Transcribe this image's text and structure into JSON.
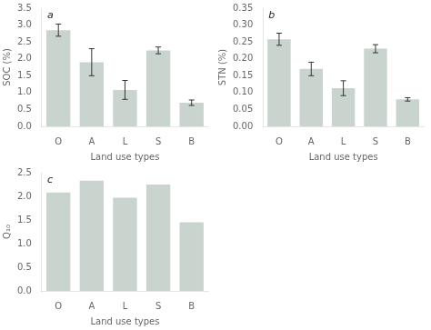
{
  "chart_data": [
    {
      "type": "bar",
      "annotation": "a",
      "categories": [
        "O",
        "A",
        "L",
        "S",
        "B"
      ],
      "values": [
        2.85,
        1.9,
        1.08,
        2.25,
        0.7
      ],
      "errors": [
        0.18,
        0.4,
        0.28,
        0.1,
        0.08
      ],
      "x_label": "Land use types",
      "y_label": "SOC (%)",
      "color": "#c8d4cd",
      "ylim": [
        0.0,
        3.5
      ],
      "yticks": [
        {
          "value": 0.0,
          "label": "0.0"
        },
        0.5,
        {
          "value": 1.0,
          "label": "1.0"
        },
        1.5,
        {
          "value": 2.0,
          "label": "2.0"
        },
        2.5,
        {
          "value": 3.0,
          "label": "3.0"
        },
        3.5
      ],
      "grid": false
    },
    {
      "type": "bar",
      "annotation": "b",
      "categories": [
        "O",
        "A",
        "L",
        "S",
        "B"
      ],
      "values": [
        0.258,
        0.17,
        0.113,
        0.23,
        0.08
      ],
      "errors": [
        0.018,
        0.02,
        0.022,
        0.012,
        0.005
      ],
      "x_label": "Land use types",
      "y_label": "STN (%)",
      "color": "#c8d4cd",
      "ylim": [
        0.0,
        0.35
      ],
      "yticks": [
        {
          "value": 0.0,
          "label": "0.00"
        },
        0.05,
        {
          "value": 0.1,
          "label": "0.10"
        },
        0.15,
        {
          "value": 0.2,
          "label": "0.20"
        },
        0.25,
        {
          "value": 0.3,
          "label": "0.30"
        },
        0.35
      ],
      "grid": false
    },
    {
      "type": "bar",
      "annotation": "c",
      "categories": [
        "O",
        "A",
        "L",
        "S",
        "B"
      ],
      "values": [
        2.08,
        2.33,
        1.97,
        2.25,
        1.45
      ],
      "x_label": "Land use types",
      "y_label": "Q₁₀",
      "color": "#c8d4cd",
      "ylim": [
        0.0,
        2.5
      ],
      "yticks": [
        {
          "value": 0.0,
          "label": "0.0"
        },
        0.5,
        {
          "value": 1.0,
          "label": "1.0"
        },
        1.5,
        {
          "value": 2.0,
          "label": "2.0"
        },
        2.5
      ],
      "grid": false
    }
  ]
}
